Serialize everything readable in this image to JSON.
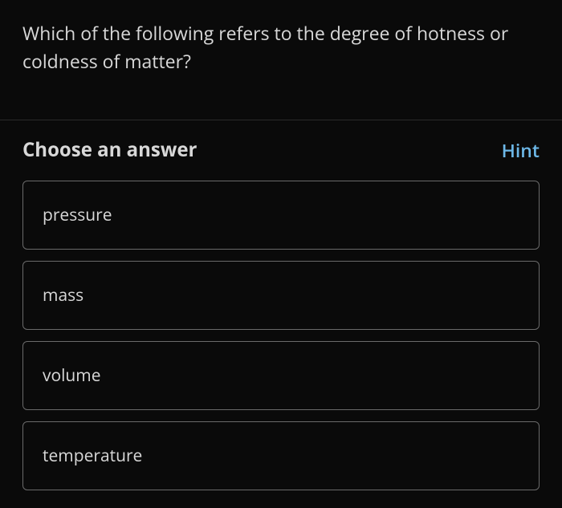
{
  "question": {
    "text": "Which of the following refers to the degree of hotness or coldness of matter?"
  },
  "answer_section": {
    "header_label": "Choose an answer",
    "hint_label": "Hint"
  },
  "options": [
    {
      "label": "pressure"
    },
    {
      "label": "mass"
    },
    {
      "label": "volume"
    },
    {
      "label": "temperature"
    }
  ],
  "colors": {
    "background": "#0a0a0a",
    "text_primary": "#d8d8d8",
    "hint": "#6db8e8",
    "border": "#6a6a6a",
    "divider": "#2a2a2a"
  }
}
